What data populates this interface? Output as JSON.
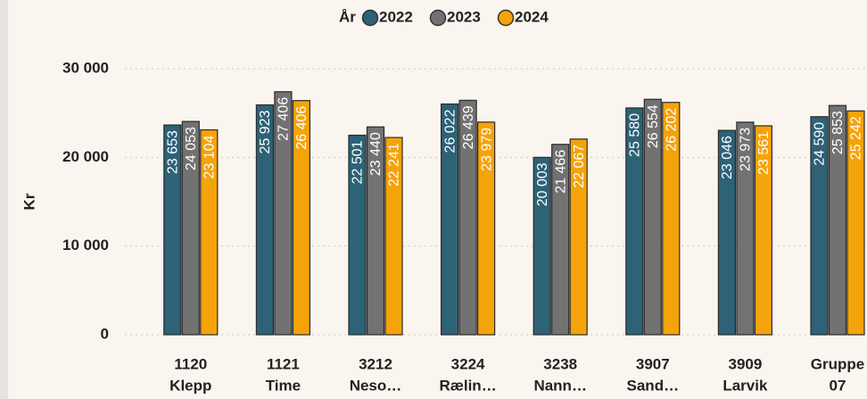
{
  "chart_data": {
    "type": "bar",
    "legend_title": "År",
    "y_label": "Kr",
    "categories": [
      [
        "1120",
        "Klepp"
      ],
      [
        "1121",
        "Time"
      ],
      [
        "3212",
        "Neso…"
      ],
      [
        "3224",
        "Rælin…"
      ],
      [
        "3238",
        "Nann…"
      ],
      [
        "3907",
        "Sand…"
      ],
      [
        "3909",
        "Larvik"
      ],
      [
        "Gruppe",
        "07"
      ]
    ],
    "series": [
      {
        "name": "2022",
        "color": "#2d6277",
        "values": [
          23653,
          25923,
          22501,
          26022,
          20003,
          25580,
          23046,
          24590
        ],
        "value_labels": [
          "23 653",
          "25 923",
          "22 501",
          "26 022",
          "20 003",
          "25 580",
          "23 046",
          "24 590"
        ]
      },
      {
        "name": "2023",
        "color": "#727272",
        "values": [
          24053,
          27406,
          23440,
          26439,
          21466,
          26554,
          23973,
          25853
        ],
        "value_labels": [
          "24 053",
          "27 406",
          "23 440",
          "26 439",
          "21 466",
          "26 554",
          "23 973",
          "25 853"
        ]
      },
      {
        "name": "2024",
        "color": "#f5a30a",
        "values": [
          23104,
          26406,
          22241,
          23979,
          22067,
          26202,
          23561,
          25242
        ],
        "value_labels": [
          "23 104",
          "26 406",
          "22 241",
          "23 979",
          "22 067",
          "26 202",
          "23 561",
          "25 242"
        ]
      }
    ],
    "ylim": [
      0,
      30000
    ],
    "yticks": [
      0,
      {
        "value": 10000,
        "label": "10 000"
      },
      {
        "value": 20000,
        "label": "20 000"
      },
      {
        "value": 30000,
        "label": "30 000"
      }
    ],
    "grid": true
  }
}
